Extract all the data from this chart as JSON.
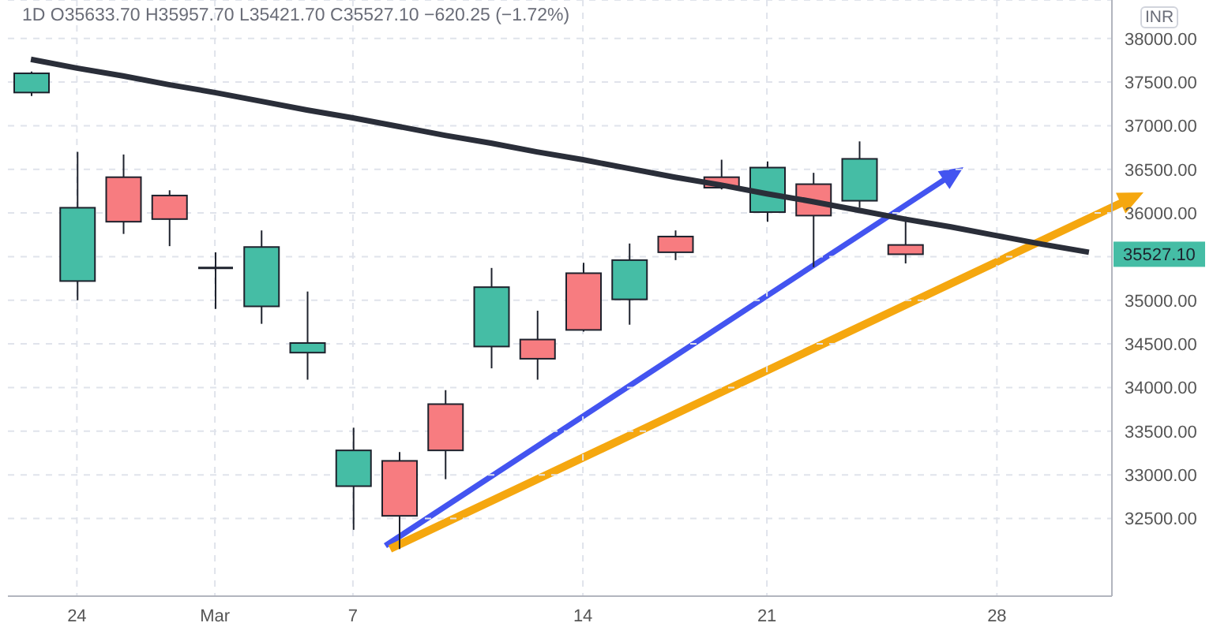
{
  "chart_data": {
    "type": "candlestick",
    "title": "1D O35633.70 H35957.70 L35421.70 C35527.10 −620.25 (−1.72%)",
    "ylabel": "INR",
    "categories": [
      null,
      "24",
      null,
      null,
      "Mar",
      null,
      null,
      "7",
      null,
      null,
      null,
      null,
      "14",
      null,
      null,
      null,
      "21",
      null,
      null,
      null,
      null,
      "28",
      null,
      null
    ],
    "ohlc": [
      [
        37380,
        37620,
        37340,
        37600
      ],
      [
        35220,
        36700,
        35000,
        36060
      ],
      [
        36410,
        36670,
        35760,
        35900
      ],
      [
        36200,
        36260,
        35620,
        35930
      ],
      [
        35370,
        35550,
        34900,
        35370
      ],
      [
        34930,
        35800,
        34730,
        35610
      ],
      [
        34400,
        35100,
        34090,
        34510
      ],
      [
        32870,
        33540,
        32370,
        33280
      ],
      [
        33160,
        33260,
        32150,
        32530
      ],
      [
        33810,
        33970,
        32950,
        33280
      ],
      [
        34470,
        35370,
        34220,
        35150
      ],
      [
        34550,
        34880,
        34090,
        34330
      ],
      [
        35310,
        35430,
        34640,
        34660
      ],
      [
        35010,
        35650,
        34720,
        35460
      ],
      [
        35730,
        35800,
        35460,
        35550
      ],
      [
        36410,
        36610,
        36270,
        36290
      ],
      [
        36010,
        36590,
        35900,
        36520
      ],
      [
        36330,
        36460,
        35380,
        35970
      ],
      [
        36140,
        36820,
        36060,
        36620
      ],
      [
        35633.7,
        35957.7,
        35421.7,
        35527.1
      ],
      null,
      null,
      null,
      null
    ],
    "colors": [
      "#45bda5",
      "#45bda5",
      "#f77c80",
      "#f77c80",
      "#1e222d",
      "#45bda5",
      "#45bda5",
      "#45bda5",
      "#f77c80",
      "#f77c80",
      "#45bda5",
      "#f77c80",
      "#f77c80",
      "#45bda5",
      "#f77c80",
      "#f77c80",
      "#45bda5",
      "#f77c80",
      "#45bda5",
      "#f77c80",
      null,
      null,
      null,
      null
    ],
    "series": [
      {
        "type": "line",
        "color": "#2a2e39",
        "values": [
          37760,
          37660,
          37570,
          37470,
          37380,
          37280,
          37180,
          37090,
          36990,
          36890,
          36800,
          36700,
          36610,
          36510,
          36410,
          36320,
          36220,
          36130,
          36030,
          35930,
          35840,
          35740,
          35640,
          35550
        ]
      }
    ],
    "ylim": [
      31610,
      38440
    ],
    "yticks": [
      {
        "value": 32500,
        "label": "32500.00"
      },
      {
        "value": 33000,
        "label": "33000.00"
      },
      {
        "value": 33500,
        "label": "33500.00"
      },
      {
        "value": 34000,
        "label": "34000.00"
      },
      {
        "value": 34500,
        "label": "34500.00"
      },
      {
        "value": 35000,
        "label": "35000.00"
      },
      {
        "value": 35500,
        "label": null
      },
      {
        "value": 36000,
        "label": "36000.00"
      },
      {
        "value": 36500,
        "label": "36500.00"
      },
      {
        "value": 37000,
        "label": "37000.00"
      },
      {
        "value": 37500,
        "label": "37500.00"
      },
      {
        "value": 38000,
        "label": "38000.00"
      }
    ],
    "grid": true,
    "annotations": [
      "35527.10"
    ]
  }
}
